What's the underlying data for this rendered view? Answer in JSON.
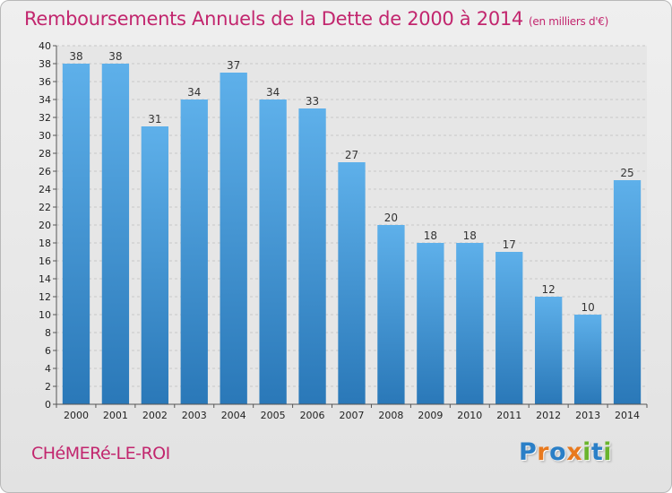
{
  "chart_data": {
    "type": "bar",
    "title": "Remboursements Annuels de la Dette de 2000 à 2014",
    "subtitle": "(en milliers d'€)",
    "categories": [
      "2000",
      "2001",
      "2002",
      "2003",
      "2004",
      "2005",
      "2006",
      "2007",
      "2008",
      "2009",
      "2010",
      "2011",
      "2012",
      "2013",
      "2014"
    ],
    "values": [
      38,
      38,
      31,
      34,
      37,
      34,
      33,
      27,
      20,
      18,
      18,
      17,
      12,
      10,
      25
    ],
    "ylim": [
      0,
      40
    ],
    "ytick_step": 2,
    "xlabel": "",
    "ylabel": "",
    "grid": true,
    "bar_color_top": "#5eb0ea",
    "bar_color_bottom": "#2a78b8"
  },
  "footer": {
    "commune": "CHéMERé-LE-ROI"
  },
  "logo": {
    "letters": [
      {
        "char": "P",
        "color": "#2a7fc7"
      },
      {
        "char": "r",
        "color": "#e8791e"
      },
      {
        "char": "o",
        "color": "#2a7fc7"
      },
      {
        "char": "x",
        "color": "#e8791e"
      },
      {
        "char": "i",
        "color": "#6ab42d"
      },
      {
        "char": "t",
        "color": "#2a7fc7"
      },
      {
        "char": "i",
        "color": "#6ab42d"
      }
    ]
  },
  "colors": {
    "title": "#c2266e",
    "grid": "#c8c8c8",
    "axis": "#555555"
  }
}
